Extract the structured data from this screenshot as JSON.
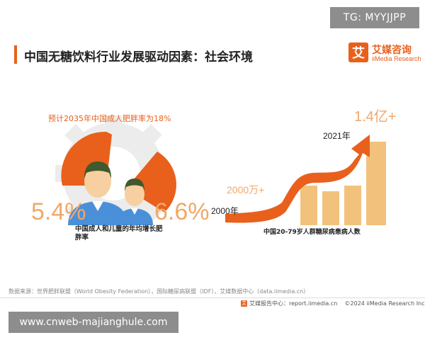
{
  "watermark_top": "TG: MYYJJPP",
  "header": {
    "title": "中国无糖饮料行业发展驱动因素：社会环境",
    "logo_mark": "艾",
    "logo_name": "艾媒咨询",
    "logo_en": "iiMedia Research"
  },
  "left_panel": {
    "forecast": "预计2035年中国成人肥胖率为18%",
    "adult_rate": "5.4%",
    "child_rate": "6.6%",
    "caption": "中国成人和儿童的年均增长肥胖率"
  },
  "right_panel": {
    "label_2021": "2021年",
    "value_2021": "1.4亿+",
    "value_2000": "2000万+",
    "label_2000": "2000年",
    "caption": "中国20-79岁人群糖尿病患病人数"
  },
  "colors": {
    "accent": "#e8601c",
    "light_orange": "#f0a86a",
    "bar": "#f2c27c",
    "gear": "#ececec"
  },
  "footer": {
    "source": "数据来源：世界肥胖联盟（World Obesity Federation），国际糖尿病联盟（IDF），艾媒数据中心（data.iimedia.cn）",
    "report_center": "艾媒报告中心：report.iimedia.cn",
    "copyright": "©2024  iiMedia Research  Inc"
  },
  "watermark_bottom": "www.cnweb-majianghule.com"
}
